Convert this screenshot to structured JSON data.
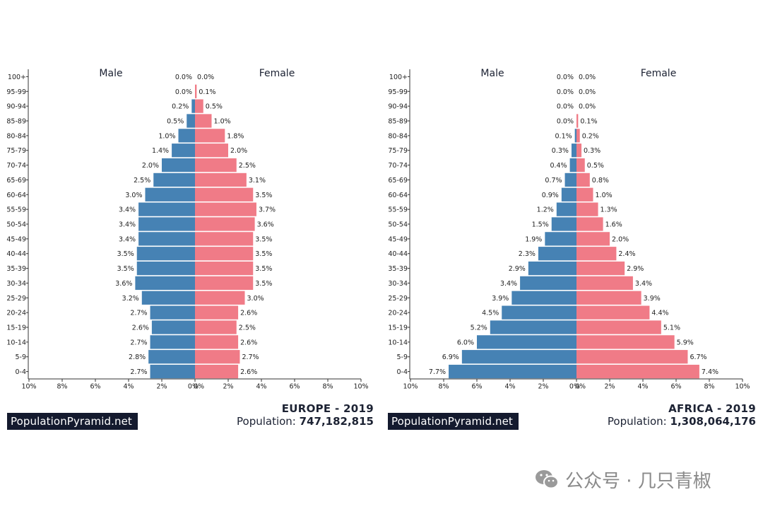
{
  "age_groups": [
    "0-4",
    "5-9",
    "10-14",
    "15-19",
    "20-24",
    "25-29",
    "30-34",
    "35-39",
    "40-44",
    "45-49",
    "50-54",
    "55-59",
    "60-64",
    "65-69",
    "70-74",
    "75-79",
    "80-84",
    "85-89",
    "90-94",
    "95-99",
    "100+"
  ],
  "colors": {
    "male": "#4682b4",
    "female": "#f07b87",
    "brand_bg": "#141a2e"
  },
  "brand_label": "PopulationPyramid.net",
  "watermark": "公众号 · 几只青椒",
  "chart_data": [
    {
      "type": "bar",
      "orientation": "horizontal-population-pyramid",
      "title": "EUROPE - 2019",
      "region": "EUROPE - 2019",
      "population_label": "Population:",
      "population_value": "747,182,815",
      "male_label": "Male",
      "female_label": "Female",
      "xlim": [
        -10,
        10
      ],
      "x_ticks": [
        "10%",
        "8%",
        "6%",
        "4%",
        "2%",
        "0%",
        "0%",
        "2%",
        "4%",
        "6%",
        "8%",
        "10%"
      ],
      "categories": [
        "0-4",
        "5-9",
        "10-14",
        "15-19",
        "20-24",
        "25-29",
        "30-34",
        "35-39",
        "40-44",
        "45-49",
        "50-54",
        "55-59",
        "60-64",
        "65-69",
        "70-74",
        "75-79",
        "80-84",
        "85-89",
        "90-94",
        "95-99",
        "100+"
      ],
      "series": [
        {
          "name": "Male",
          "values": [
            2.7,
            2.8,
            2.7,
            2.6,
            2.7,
            3.2,
            3.6,
            3.5,
            3.5,
            3.4,
            3.4,
            3.4,
            3.0,
            2.5,
            2.0,
            1.4,
            1.0,
            0.5,
            0.2,
            0.0,
            0.0
          ]
        },
        {
          "name": "Female",
          "values": [
            2.6,
            2.7,
            2.6,
            2.5,
            2.6,
            3.0,
            3.5,
            3.5,
            3.5,
            3.5,
            3.6,
            3.7,
            3.5,
            3.1,
            2.5,
            2.0,
            1.8,
            1.0,
            0.5,
            0.1,
            0.0
          ]
        }
      ]
    },
    {
      "type": "bar",
      "orientation": "horizontal-population-pyramid",
      "title": "AFRICA - 2019",
      "region": "AFRICA - 2019",
      "population_label": "Population:",
      "population_value": "1,308,064,176",
      "male_label": "Male",
      "female_label": "Female",
      "xlim": [
        -10,
        10
      ],
      "x_ticks": [
        "10%",
        "8%",
        "6%",
        "4%",
        "2%",
        "0%",
        "0%",
        "2%",
        "4%",
        "6%",
        "8%",
        "10%"
      ],
      "categories": [
        "0-4",
        "5-9",
        "10-14",
        "15-19",
        "20-24",
        "25-29",
        "30-34",
        "35-39",
        "40-44",
        "45-49",
        "50-54",
        "55-59",
        "60-64",
        "65-69",
        "70-74",
        "75-79",
        "80-84",
        "85-89",
        "90-94",
        "95-99",
        "100+"
      ],
      "series": [
        {
          "name": "Male",
          "values": [
            7.7,
            6.9,
            6.0,
            5.2,
            4.5,
            3.9,
            3.4,
            2.9,
            2.3,
            1.9,
            1.5,
            1.2,
            0.9,
            0.7,
            0.4,
            0.3,
            0.1,
            0.0,
            0.0,
            0.0,
            0.0
          ]
        },
        {
          "name": "Female",
          "values": [
            7.4,
            6.7,
            5.9,
            5.1,
            4.4,
            3.9,
            3.4,
            2.9,
            2.4,
            2.0,
            1.6,
            1.3,
            1.0,
            0.8,
            0.5,
            0.3,
            0.2,
            0.1,
            0.0,
            0.0,
            0.0
          ]
        }
      ]
    }
  ]
}
